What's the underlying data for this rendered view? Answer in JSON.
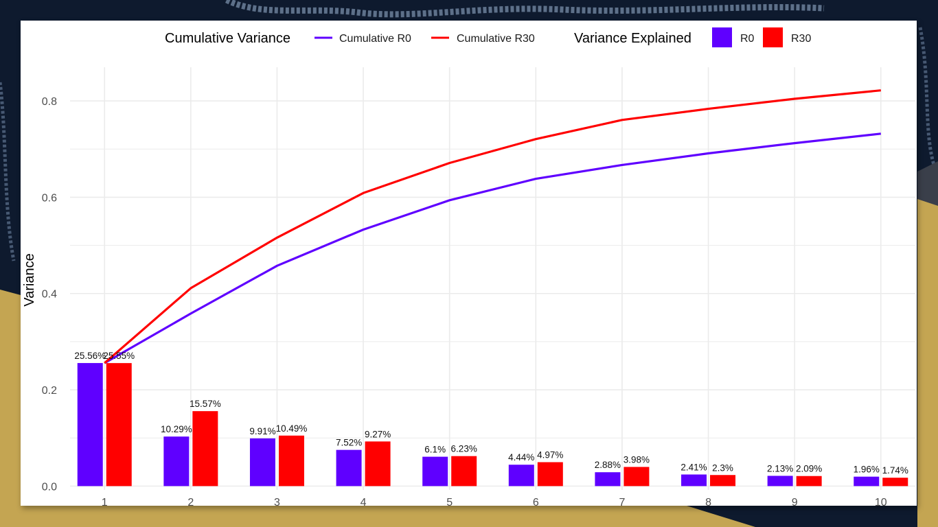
{
  "colors": {
    "r0": "#5f00ff",
    "r30": "#ff0000",
    "grid": "#ebebeb",
    "tick_text": "#4d4d4d",
    "bg_dark": "#0e1a2e",
    "bg_gold": "#c4a552",
    "bg_slate": "#3a3f4a"
  },
  "chart_data": {
    "type": "bar",
    "ylabel": "Variance",
    "xlabel": "",
    "title": "",
    "ylim": [
      -0.008,
      0.87
    ],
    "xlim": [
      0.6,
      10.4
    ],
    "y_ticks": [
      0.0,
      0.2,
      0.4,
      0.6,
      0.8
    ],
    "y_tick_labels": [
      "0.0",
      "0.2",
      "0.4",
      "0.6",
      "0.8"
    ],
    "categories": [
      "1",
      "2",
      "3",
      "4",
      "5",
      "6",
      "7",
      "8",
      "9",
      "10"
    ],
    "grid": true,
    "legend_position": "top",
    "legend": {
      "line_title": "Cumulative Variance",
      "bar_title": "Variance Explained",
      "line_items": [
        "Cumulative R0",
        "Cumulative R30"
      ],
      "bar_items": [
        "R0",
        "R30"
      ]
    },
    "bar_series": [
      {
        "name": "R0",
        "color": "#5f00ff",
        "values": [
          0.2556,
          0.1029,
          0.0991,
          0.0752,
          0.061,
          0.0444,
          0.0288,
          0.0241,
          0.0213,
          0.0196
        ],
        "labels": [
          "25.56%",
          "10.29%",
          "9.91%",
          "7.52%",
          "6.1%",
          "4.44%",
          "2.88%",
          "2.41%",
          "2.13%",
          "1.96%"
        ]
      },
      {
        "name": "R30",
        "color": "#ff0000",
        "values": [
          0.2555,
          0.1557,
          0.1049,
          0.0927,
          0.0623,
          0.0497,
          0.0398,
          0.023,
          0.0209,
          0.0174
        ],
        "labels": [
          "25.55%",
          "15.57%",
          "10.49%",
          "9.27%",
          "6.23%",
          "4.97%",
          "3.98%",
          "2.3%",
          "2.09%",
          "1.74%"
        ]
      }
    ],
    "line_series": [
      {
        "name": "Cumulative R0",
        "color": "#5f00ff",
        "values": [
          0.2556,
          0.3585,
          0.4576,
          0.5328,
          0.5938,
          0.6382,
          0.667,
          0.6911,
          0.7124,
          0.732
        ]
      },
      {
        "name": "Cumulative R30",
        "color": "#ff0000",
        "values": [
          0.2555,
          0.4112,
          0.5161,
          0.6088,
          0.6711,
          0.7208,
          0.7606,
          0.7836,
          0.8045,
          0.8219
        ]
      }
    ]
  }
}
